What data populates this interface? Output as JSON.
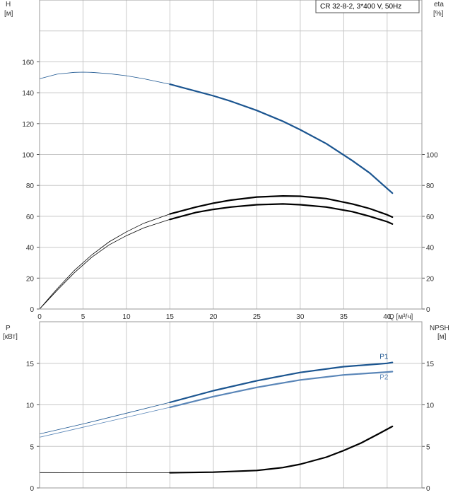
{
  "colors": {
    "blue": "#1b5590",
    "blue_light": "#5a86b8",
    "black": "#000000",
    "grid": "#c8c8c8",
    "frame": "#9a9a9a"
  },
  "legend": {
    "text": "CR 32-8-2, 3*400 V, 50Hz"
  },
  "chart_data": [
    {
      "type": "line",
      "panel": "head-efficiency",
      "xlabel": "Q [м³/ч]",
      "x_ticks": [
        "0",
        "5",
        "10",
        "15",
        "20",
        "25",
        "30",
        "35",
        "40"
      ],
      "xlim": [
        0,
        44
      ],
      "left_axis": {
        "label_line1": "H",
        "label_line2": "[м]",
        "ylim": [
          0,
          200
        ],
        "ticks": [
          "0",
          "20",
          "40",
          "60",
          "80",
          "100",
          "120",
          "140",
          "160"
        ]
      },
      "right_axis": {
        "label_line1": "eta",
        "label_line2": "[%]",
        "ylim": [
          0,
          200
        ],
        "ticks": [
          "0",
          "20",
          "40",
          "60",
          "80",
          "100"
        ]
      },
      "grid": true,
      "series": [
        {
          "axis": "left",
          "color": "blue",
          "duty_from": 15,
          "x": [
            0,
            2,
            4,
            5,
            6,
            8,
            10,
            12,
            15,
            18,
            20,
            22,
            25,
            28,
            30,
            33,
            36,
            38,
            40,
            40.6
          ],
          "y": [
            149,
            152,
            153.2,
            153.3,
            153.2,
            152.3,
            151,
            149,
            145.5,
            141,
            138,
            134.5,
            128.5,
            121.5,
            116,
            107,
            96,
            88,
            78,
            75
          ]
        },
        {
          "axis": "right",
          "color": "black",
          "duty_from": 15,
          "x": [
            0,
            2,
            4,
            6,
            8,
            10,
            12,
            15,
            18,
            20,
            22,
            25,
            28,
            30,
            33,
            36,
            38,
            40,
            40.6
          ],
          "y": [
            0,
            13,
            25,
            35,
            43.5,
            50,
            55.5,
            61.5,
            66,
            68.5,
            70.5,
            72.5,
            73.2,
            73,
            71.5,
            68,
            65,
            61,
            59.5
          ]
        },
        {
          "axis": "right",
          "color": "black",
          "duty_from": 15,
          "x": [
            0,
            2,
            4,
            6,
            8,
            10,
            12,
            15,
            18,
            20,
            22,
            25,
            28,
            30,
            33,
            36,
            38,
            40,
            40.6
          ],
          "y": [
            0,
            12,
            23.5,
            33.5,
            41.5,
            47.5,
            52.5,
            58,
            62.5,
            64.5,
            66,
            67.5,
            68,
            67.5,
            66,
            63,
            60,
            56.5,
            55
          ]
        }
      ]
    },
    {
      "type": "line",
      "panel": "power-npsh",
      "x_ticks": [
        "0",
        "5",
        "10",
        "15",
        "20",
        "25",
        "30",
        "35",
        "40"
      ],
      "xlim": [
        0,
        44
      ],
      "left_axis": {
        "label_line1": "P",
        "label_line2": "[кВт]",
        "ylim": [
          0,
          20
        ],
        "ticks": [
          "0",
          "5",
          "10",
          "15"
        ]
      },
      "right_axis": {
        "label_line1": "NPSH",
        "label_line2": "[м]",
        "ylim": [
          0,
          20
        ],
        "ticks": [
          "0",
          "5",
          "10",
          "15"
        ]
      },
      "grid": true,
      "series": [
        {
          "name": "P1",
          "axis": "left",
          "color": "blue",
          "duty_from": 15,
          "x": [
            0,
            5,
            10,
            15,
            20,
            25,
            30,
            35,
            40,
            40.6
          ],
          "y": [
            6.5,
            7.7,
            9,
            10.3,
            11.7,
            12.9,
            13.9,
            14.6,
            15.0,
            15.1
          ]
        },
        {
          "name": "P2",
          "axis": "left",
          "color": "blue_light",
          "duty_from": 15,
          "x": [
            0,
            5,
            10,
            15,
            20,
            25,
            30,
            35,
            40,
            40.6
          ],
          "y": [
            6.1,
            7.3,
            8.5,
            9.7,
            11,
            12.1,
            13,
            13.6,
            13.95,
            14.0
          ]
        },
        {
          "axis": "right",
          "color": "black",
          "duty_from": 15,
          "x": [
            0,
            5,
            10,
            15,
            20,
            25,
            28,
            30,
            33,
            35,
            37,
            39,
            40.6
          ],
          "y": [
            1.85,
            1.83,
            1.82,
            1.83,
            1.9,
            2.1,
            2.45,
            2.85,
            3.7,
            4.5,
            5.4,
            6.5,
            7.4
          ]
        }
      ]
    }
  ]
}
